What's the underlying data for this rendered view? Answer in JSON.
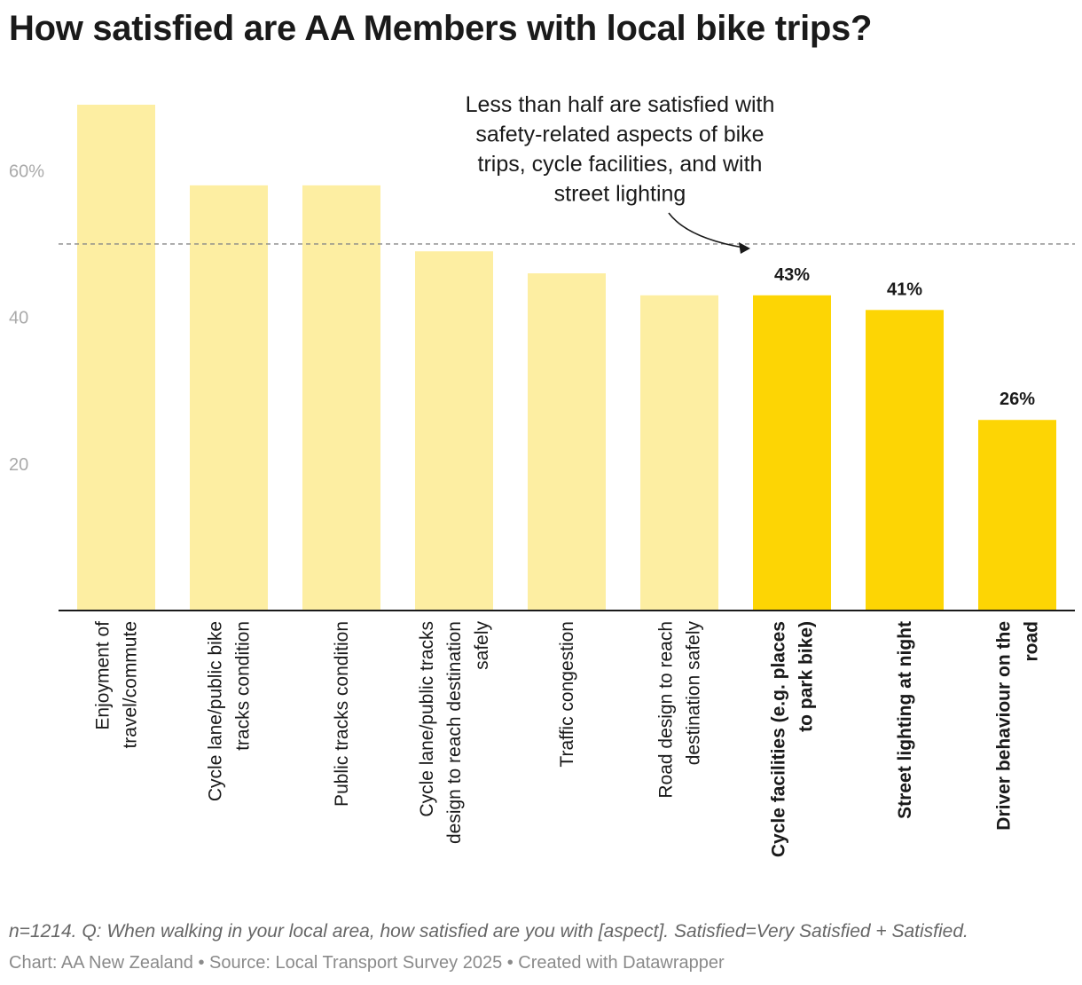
{
  "chart_data": {
    "type": "bar",
    "title": "How satisfied are AA Members with local bike trips?",
    "categories": [
      "Enjoyment of travel/commute",
      "Cycle lane/public bike tracks condition",
      "Public tracks condition",
      "Cycle lane/public tracks design to reach destination safely",
      "Traffic congestion",
      "Road design to reach destination safely",
      "Cycle facilities (e.g. places to park bike)",
      "Street lighting at night",
      "Driver behaviour on the road"
    ],
    "label_lines": [
      [
        "Enjoyment of",
        "travel/commute"
      ],
      [
        "Cycle lane/public bike",
        "tracks condition"
      ],
      [
        "Public tracks condition"
      ],
      [
        "Cycle lane/public tracks",
        "design to reach destination",
        "safely"
      ],
      [
        "Traffic congestion"
      ],
      [
        "Road design to reach",
        "destination safely"
      ],
      [
        "Cycle facilities (e.g. places",
        "to park bike)"
      ],
      [
        "Street lighting at night"
      ],
      [
        "Driver behaviour on the",
        "road"
      ]
    ],
    "values": [
      69,
      58,
      58,
      49,
      46,
      43,
      43,
      41,
      26
    ],
    "highlighted": [
      false,
      false,
      false,
      false,
      false,
      false,
      true,
      true,
      true
    ],
    "value_labels": [
      "",
      "",
      "",
      "",
      "",
      "",
      "43%",
      "41%",
      "26%"
    ],
    "ylim": [
      0,
      69
    ],
    "yticks": [
      20,
      40,
      60
    ],
    "ytick_labels": [
      "20",
      "40",
      "60%"
    ],
    "reference_line": 50,
    "annotation": {
      "lines": [
        "Less than half are satisfied with",
        "safety-related aspects of bike",
        "trips, cycle facilities, and with",
        "street lighting"
      ]
    },
    "colors": {
      "bar": "#fdeea2",
      "bar_highlight": "#fdd504",
      "axis": "#1a1a1a",
      "tick_text": "#aaaaaa",
      "reference": "#888888"
    },
    "xlabel": "",
    "ylabel": ""
  },
  "footnote": "n=1214. Q: When walking in your local area, how satisfied are you with [aspect]. Satisfied=Very Satisfied + Satisfied.",
  "credit": "Chart: AA New Zealand • Source: Local Transport Survey 2025 • Created with Datawrapper"
}
